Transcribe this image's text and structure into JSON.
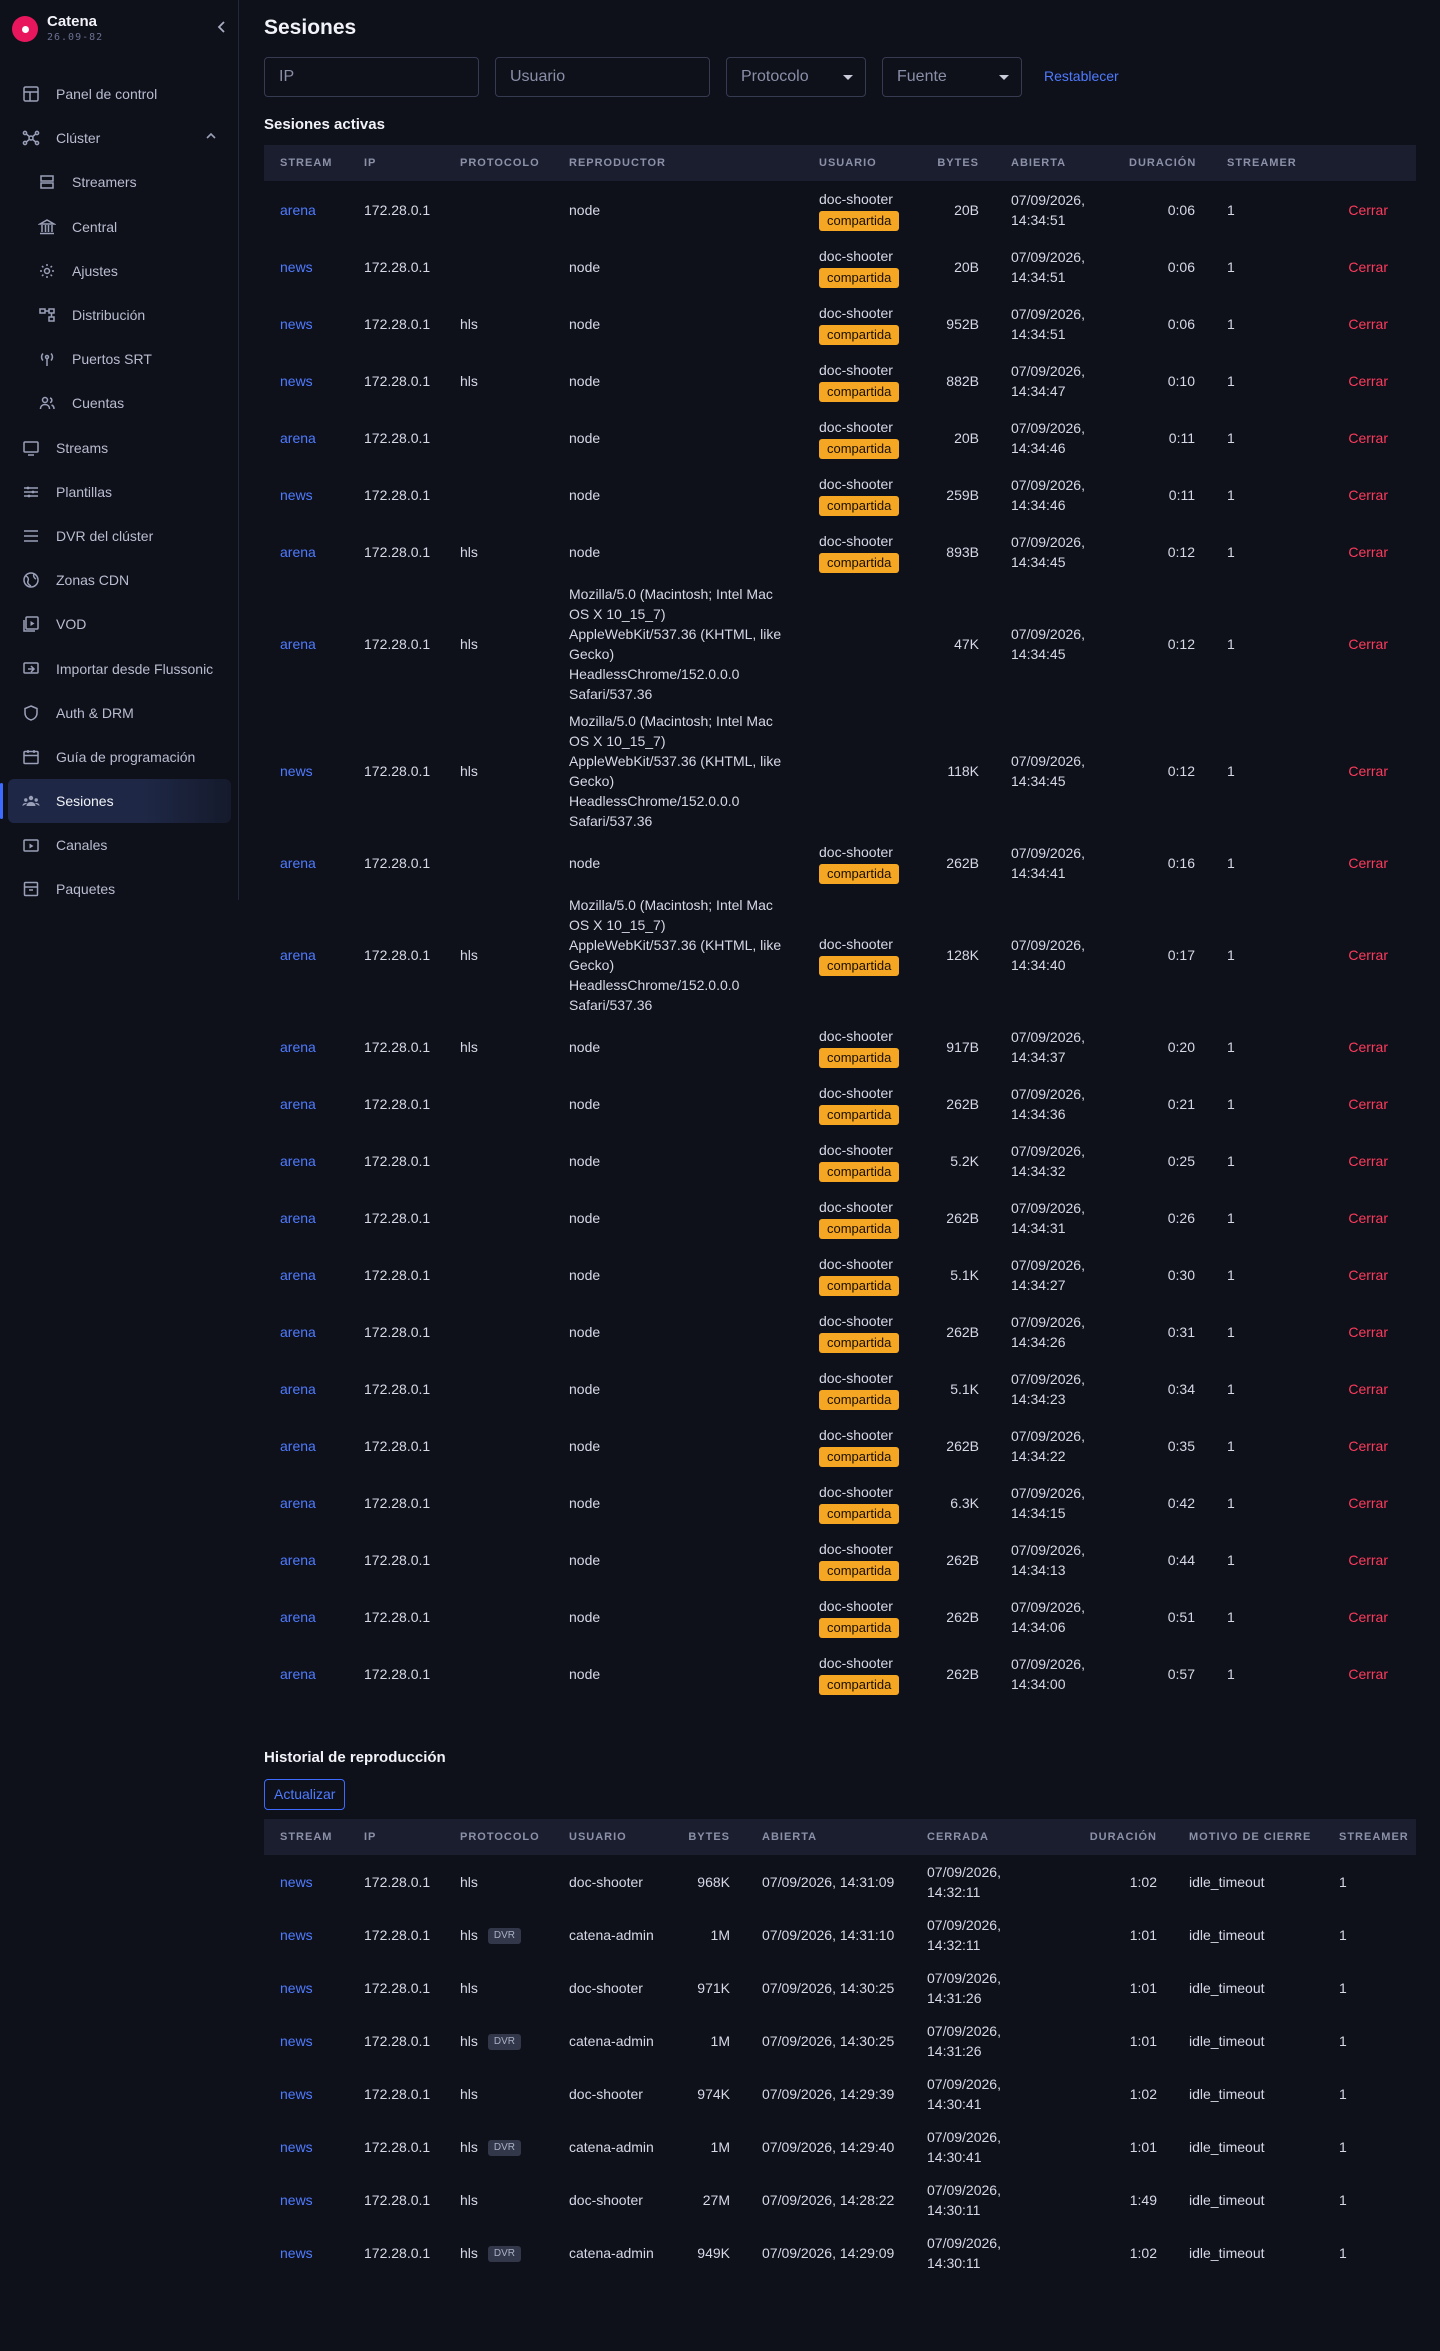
{
  "brand": {
    "name": "Catena",
    "version": "26.09-82"
  },
  "sidebar": {
    "items": [
      {
        "label": "Panel de control",
        "icon": "dashboard-icon",
        "sub": false
      },
      {
        "label": "Clúster",
        "icon": "cluster-icon",
        "sub": false,
        "expanded": true
      },
      {
        "label": "Streamers",
        "icon": "server-icon",
        "sub": true
      },
      {
        "label": "Central",
        "icon": "bank-icon",
        "sub": true
      },
      {
        "label": "Ajustes",
        "icon": "gear-icon",
        "sub": true
      },
      {
        "label": "Distribución",
        "icon": "distribution-icon",
        "sub": true
      },
      {
        "label": "Puertos SRT",
        "icon": "antenna-icon",
        "sub": true
      },
      {
        "label": "Cuentas",
        "icon": "users-icon",
        "sub": true
      },
      {
        "label": "Streams",
        "icon": "monitor-icon",
        "sub": false
      },
      {
        "label": "Plantillas",
        "icon": "sliders-icon",
        "sub": false
      },
      {
        "label": "DVR del clúster",
        "icon": "list-icon",
        "sub": false
      },
      {
        "label": "Zonas CDN",
        "icon": "globe-icon",
        "sub": false
      },
      {
        "label": "VOD",
        "icon": "video-library-icon",
        "sub": false
      },
      {
        "label": "Importar desde Flussonic",
        "icon": "import-icon",
        "sub": false
      },
      {
        "label": "Auth & DRM",
        "icon": "shield-icon",
        "sub": false
      },
      {
        "label": "Guía de programación",
        "icon": "calendar-icon",
        "sub": false
      },
      {
        "label": "Sesiones",
        "icon": "group-icon",
        "sub": false,
        "active": true
      },
      {
        "label": "Canales",
        "icon": "tv-icon",
        "sub": false
      },
      {
        "label": "Paquetes",
        "icon": "package-icon",
        "sub": false
      }
    ]
  },
  "page": {
    "title": "Sesiones"
  },
  "filters": {
    "ip_placeholder": "IP",
    "user_placeholder": "Usuario",
    "protocol_placeholder": "Protocolo",
    "source_placeholder": "Fuente",
    "reset_label": "Restablecer"
  },
  "active": {
    "title": "Sesiones activas",
    "columns": [
      "STREAM",
      "IP",
      "PROTOCOLO",
      "REPRODUCTOR",
      "USUARIO",
      "BYTES",
      "ABIERTA",
      "DURACIÓN",
      "STREAMER",
      ""
    ],
    "close_label": "Cerrar",
    "shared_label": "compartida",
    "rows": [
      {
        "stream": "arena",
        "ip": "172.28.0.1",
        "protocol": "",
        "player": "node",
        "user": "doc-shooter",
        "shared": true,
        "bytes": "20B",
        "opened": "07/09/2026, 14:34:51",
        "duration": "0:06",
        "streamer": "1"
      },
      {
        "stream": "news",
        "ip": "172.28.0.1",
        "protocol": "",
        "player": "node",
        "user": "doc-shooter",
        "shared": true,
        "bytes": "20B",
        "opened": "07/09/2026, 14:34:51",
        "duration": "0:06",
        "streamer": "1"
      },
      {
        "stream": "news",
        "ip": "172.28.0.1",
        "protocol": "hls",
        "player": "node",
        "user": "doc-shooter",
        "shared": true,
        "bytes": "952B",
        "opened": "07/09/2026, 14:34:51",
        "duration": "0:06",
        "streamer": "1"
      },
      {
        "stream": "news",
        "ip": "172.28.0.1",
        "protocol": "hls",
        "player": "node",
        "user": "doc-shooter",
        "shared": true,
        "bytes": "882B",
        "opened": "07/09/2026, 14:34:47",
        "duration": "0:10",
        "streamer": "1"
      },
      {
        "stream": "arena",
        "ip": "172.28.0.1",
        "protocol": "",
        "player": "node",
        "user": "doc-shooter",
        "shared": true,
        "bytes": "20B",
        "opened": "07/09/2026, 14:34:46",
        "duration": "0:11",
        "streamer": "1"
      },
      {
        "stream": "news",
        "ip": "172.28.0.1",
        "protocol": "",
        "player": "node",
        "user": "doc-shooter",
        "shared": true,
        "bytes": "259B",
        "opened": "07/09/2026, 14:34:46",
        "duration": "0:11",
        "streamer": "1"
      },
      {
        "stream": "arena",
        "ip": "172.28.0.1",
        "protocol": "hls",
        "player": "node",
        "user": "doc-shooter",
        "shared": true,
        "bytes": "893B",
        "opened": "07/09/2026, 14:34:45",
        "duration": "0:12",
        "streamer": "1"
      },
      {
        "stream": "arena",
        "ip": "172.28.0.1",
        "protocol": "hls",
        "player": "Mozilla/5.0 (Macintosh; Intel Mac OS X 10_15_7) AppleWebKit/537.36 (KHTML, like Gecko) HeadlessChrome/152.0.0.0 Safari/537.36",
        "user": "",
        "shared": false,
        "bytes": "47K",
        "opened": "07/09/2026, 14:34:45",
        "duration": "0:12",
        "streamer": "1"
      },
      {
        "stream": "news",
        "ip": "172.28.0.1",
        "protocol": "hls",
        "player": "Mozilla/5.0 (Macintosh; Intel Mac OS X 10_15_7) AppleWebKit/537.36 (KHTML, like Gecko) HeadlessChrome/152.0.0.0 Safari/537.36",
        "user": "",
        "shared": false,
        "bytes": "118K",
        "opened": "07/09/2026, 14:34:45",
        "duration": "0:12",
        "streamer": "1"
      },
      {
        "stream": "arena",
        "ip": "172.28.0.1",
        "protocol": "",
        "player": "node",
        "user": "doc-shooter",
        "shared": true,
        "bytes": "262B",
        "opened": "07/09/2026, 14:34:41",
        "duration": "0:16",
        "streamer": "1"
      },
      {
        "stream": "arena",
        "ip": "172.28.0.1",
        "protocol": "hls",
        "player": "Mozilla/5.0 (Macintosh; Intel Mac OS X 10_15_7) AppleWebKit/537.36 (KHTML, like Gecko) HeadlessChrome/152.0.0.0 Safari/537.36",
        "user": "doc-shooter",
        "shared": true,
        "bytes": "128K",
        "opened": "07/09/2026, 14:34:40",
        "duration": "0:17",
        "streamer": "1"
      },
      {
        "stream": "arena",
        "ip": "172.28.0.1",
        "protocol": "hls",
        "player": "node",
        "user": "doc-shooter",
        "shared": true,
        "bytes": "917B",
        "opened": "07/09/2026, 14:34:37",
        "duration": "0:20",
        "streamer": "1"
      },
      {
        "stream": "arena",
        "ip": "172.28.0.1",
        "protocol": "",
        "player": "node",
        "user": "doc-shooter",
        "shared": true,
        "bytes": "262B",
        "opened": "07/09/2026, 14:34:36",
        "duration": "0:21",
        "streamer": "1"
      },
      {
        "stream": "arena",
        "ip": "172.28.0.1",
        "protocol": "",
        "player": "node",
        "user": "doc-shooter",
        "shared": true,
        "bytes": "5.2K",
        "opened": "07/09/2026, 14:34:32",
        "duration": "0:25",
        "streamer": "1"
      },
      {
        "stream": "arena",
        "ip": "172.28.0.1",
        "protocol": "",
        "player": "node",
        "user": "doc-shooter",
        "shared": true,
        "bytes": "262B",
        "opened": "07/09/2026, 14:34:31",
        "duration": "0:26",
        "streamer": "1"
      },
      {
        "stream": "arena",
        "ip": "172.28.0.1",
        "protocol": "",
        "player": "node",
        "user": "doc-shooter",
        "shared": true,
        "bytes": "5.1K",
        "opened": "07/09/2026, 14:34:27",
        "duration": "0:30",
        "streamer": "1"
      },
      {
        "stream": "arena",
        "ip": "172.28.0.1",
        "protocol": "",
        "player": "node",
        "user": "doc-shooter",
        "shared": true,
        "bytes": "262B",
        "opened": "07/09/2026, 14:34:26",
        "duration": "0:31",
        "streamer": "1"
      },
      {
        "stream": "arena",
        "ip": "172.28.0.1",
        "protocol": "",
        "player": "node",
        "user": "doc-shooter",
        "shared": true,
        "bytes": "5.1K",
        "opened": "07/09/2026, 14:34:23",
        "duration": "0:34",
        "streamer": "1"
      },
      {
        "stream": "arena",
        "ip": "172.28.0.1",
        "protocol": "",
        "player": "node",
        "user": "doc-shooter",
        "shared": true,
        "bytes": "262B",
        "opened": "07/09/2026, 14:34:22",
        "duration": "0:35",
        "streamer": "1"
      },
      {
        "stream": "arena",
        "ip": "172.28.0.1",
        "protocol": "",
        "player": "node",
        "user": "doc-shooter",
        "shared": true,
        "bytes": "6.3K",
        "opened": "07/09/2026, 14:34:15",
        "duration": "0:42",
        "streamer": "1"
      },
      {
        "stream": "arena",
        "ip": "172.28.0.1",
        "protocol": "",
        "player": "node",
        "user": "doc-shooter",
        "shared": true,
        "bytes": "262B",
        "opened": "07/09/2026, 14:34:13",
        "duration": "0:44",
        "streamer": "1"
      },
      {
        "stream": "arena",
        "ip": "172.28.0.1",
        "protocol": "",
        "player": "node",
        "user": "doc-shooter",
        "shared": true,
        "bytes": "262B",
        "opened": "07/09/2026, 14:34:06",
        "duration": "0:51",
        "streamer": "1"
      },
      {
        "stream": "arena",
        "ip": "172.28.0.1",
        "protocol": "",
        "player": "node",
        "user": "doc-shooter",
        "shared": true,
        "bytes": "262B",
        "opened": "07/09/2026, 14:34:00",
        "duration": "0:57",
        "streamer": "1"
      }
    ]
  },
  "history": {
    "title": "Historial de reproducción",
    "refresh_label": "Actualizar",
    "columns": [
      "STREAM",
      "IP",
      "PROTOCOLO",
      "USUARIO",
      "BYTES",
      "ABIERTA",
      "CERRADA",
      "DURACIÓN",
      "MOTIVO DE CIERRE",
      "STREAMER"
    ],
    "dvr_label": "DVR",
    "rows": [
      {
        "stream": "news",
        "ip": "172.28.0.1",
        "protocol": "hls",
        "dvr": false,
        "user": "doc-shooter",
        "bytes": "968K",
        "opened": "07/09/2026, 14:31:09",
        "closed": "07/09/2026, 14:32:11",
        "duration": "1:02",
        "reason": "idle_timeout",
        "streamer": "1"
      },
      {
        "stream": "news",
        "ip": "172.28.0.1",
        "protocol": "hls",
        "dvr": true,
        "user": "catena-admin",
        "bytes": "1M",
        "opened": "07/09/2026, 14:31:10",
        "closed": "07/09/2026, 14:32:11",
        "duration": "1:01",
        "reason": "idle_timeout",
        "streamer": "1"
      },
      {
        "stream": "news",
        "ip": "172.28.0.1",
        "protocol": "hls",
        "dvr": false,
        "user": "doc-shooter",
        "bytes": "971K",
        "opened": "07/09/2026, 14:30:25",
        "closed": "07/09/2026, 14:31:26",
        "duration": "1:01",
        "reason": "idle_timeout",
        "streamer": "1"
      },
      {
        "stream": "news",
        "ip": "172.28.0.1",
        "protocol": "hls",
        "dvr": true,
        "user": "catena-admin",
        "bytes": "1M",
        "opened": "07/09/2026, 14:30:25",
        "closed": "07/09/2026, 14:31:26",
        "duration": "1:01",
        "reason": "idle_timeout",
        "streamer": "1"
      },
      {
        "stream": "news",
        "ip": "172.28.0.1",
        "protocol": "hls",
        "dvr": false,
        "user": "doc-shooter",
        "bytes": "974K",
        "opened": "07/09/2026, 14:29:39",
        "closed": "07/09/2026, 14:30:41",
        "duration": "1:02",
        "reason": "idle_timeout",
        "streamer": "1"
      },
      {
        "stream": "news",
        "ip": "172.28.0.1",
        "protocol": "hls",
        "dvr": true,
        "user": "catena-admin",
        "bytes": "1M",
        "opened": "07/09/2026, 14:29:40",
        "closed": "07/09/2026, 14:30:41",
        "duration": "1:01",
        "reason": "idle_timeout",
        "streamer": "1"
      },
      {
        "stream": "news",
        "ip": "172.28.0.1",
        "protocol": "hls",
        "dvr": false,
        "user": "doc-shooter",
        "bytes": "27M",
        "opened": "07/09/2026, 14:28:22",
        "closed": "07/09/2026, 14:30:11",
        "duration": "1:49",
        "reason": "idle_timeout",
        "streamer": "1"
      },
      {
        "stream": "news",
        "ip": "172.28.0.1",
        "protocol": "hls",
        "dvr": true,
        "user": "catena-admin",
        "bytes": "949K",
        "opened": "07/09/2026, 14:29:09",
        "closed": "07/09/2026, 14:30:11",
        "duration": "1:02",
        "reason": "idle_timeout",
        "streamer": "1"
      }
    ]
  },
  "colors": {
    "accent": "#4f7bff",
    "danger": "#ff3b5c",
    "shared_badge": "#f5a623",
    "brand": "#e8175d"
  }
}
